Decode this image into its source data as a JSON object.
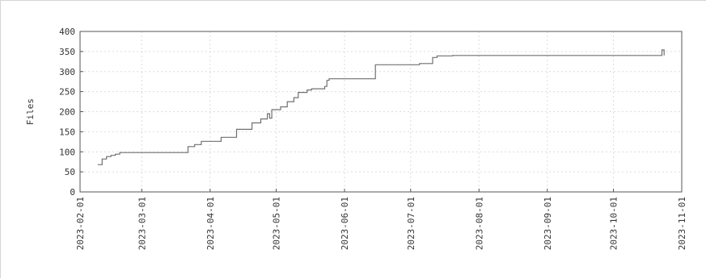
{
  "chart_data": {
    "type": "line",
    "ylabel": "Files",
    "xlabel": "",
    "title": "",
    "grid": true,
    "legend": "none",
    "x_range": [
      "2023-02-01",
      "2023-11-01"
    ],
    "ylim": [
      0,
      400
    ],
    "y_ticks": [
      0,
      50,
      100,
      150,
      200,
      250,
      300,
      350,
      400
    ],
    "x_ticks": [
      "2023-02-01",
      "2023-03-01",
      "2023-04-01",
      "2023-05-01",
      "2023-06-01",
      "2023-07-01",
      "2023-08-01",
      "2023-09-01",
      "2023-10-01",
      "2023-11-01"
    ],
    "line_color": "#707070",
    "series": [
      {
        "x": [
          "2023-02-09",
          "2023-02-11",
          "2023-02-13",
          "2023-02-15",
          "2023-02-17",
          "2023-02-19",
          "2023-03-16",
          "2023-03-22",
          "2023-03-25",
          "2023-03-28",
          "2023-04-06",
          "2023-04-13",
          "2023-04-20",
          "2023-04-24",
          "2023-04-27",
          "2023-04-28",
          "2023-04-29",
          "2023-05-03",
          "2023-05-06",
          "2023-05-09",
          "2023-05-11",
          "2023-05-15",
          "2023-05-17",
          "2023-05-23",
          "2023-05-24",
          "2023-05-25",
          "2023-06-15",
          "2023-07-05",
          "2023-07-11",
          "2023-07-13",
          "2023-07-20",
          "2023-10-23",
          "2023-10-23",
          "2023-10-24"
        ],
        "y": [
          68,
          82,
          88,
          91,
          94,
          98,
          98,
          113,
          118,
          126,
          136,
          156,
          172,
          182,
          195,
          184,
          205,
          212,
          225,
          235,
          248,
          254,
          257,
          263,
          278,
          282,
          317,
          320,
          335,
          339,
          340,
          340,
          354,
          340
        ]
      }
    ]
  }
}
